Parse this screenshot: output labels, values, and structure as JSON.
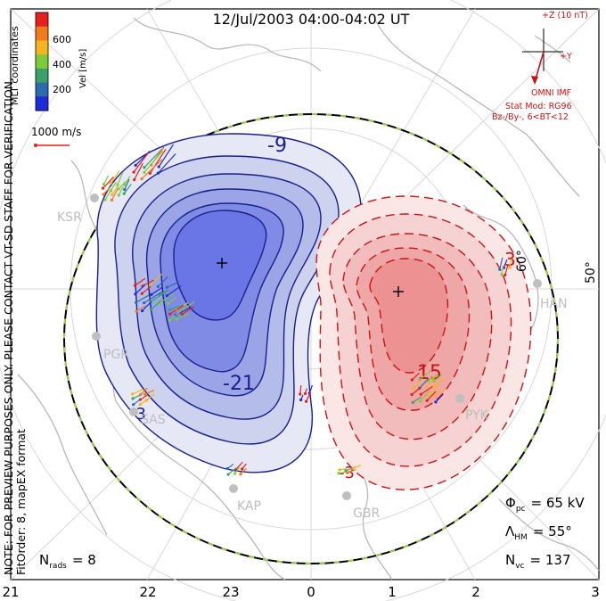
{
  "title": "12/Jul/2003 04:00-04:02 UT",
  "colorbar": {
    "ticks": [
      "600",
      "400",
      "200"
    ],
    "unit": "Vel [m/s]",
    "colors": [
      "#e8201c",
      "#f07a1c",
      "#f6b41e",
      "#7ecb3a",
      "#3aa06a",
      "#2d6bb0",
      "#1f2ad8"
    ]
  },
  "coord_label": "MLT coordinates",
  "vector_scale": "1000 m/s",
  "side_note_1": "NOTE: FOR PREVIEW PURPOSES ONLY. PLEASE CONTACT VT-SD STAFF FOR VERIFICATION.",
  "side_note_2": "FitOrder: 8, mapEX format",
  "imf": {
    "label": "+Z (10 nT)",
    "y_label": "+Y",
    "source": "OMNI IMF",
    "model": "Stat Mod: RG96",
    "condition": "Bz-/By-, 6<BT<12"
  },
  "stations": [
    "KSR",
    "PGR",
    "SAS",
    "KAP",
    "GBR",
    "PYK",
    "HAN"
  ],
  "contours": {
    "negative": [
      "-9",
      "-21",
      "-3"
    ],
    "positive": [
      "3",
      "15",
      "-3"
    ]
  },
  "lat_labels": [
    "60°",
    "50°"
  ],
  "mlt_ticks": [
    "21",
    "22",
    "23",
    "0",
    "1",
    "2",
    "3"
  ],
  "stats": {
    "phi_sym": "Φ",
    "phi_sub": "pc",
    "phi_val": "= 65 kV",
    "lam_sym": "Λ",
    "lam_sub": "HM",
    "lam_val": "= 55°",
    "nvc_sym": "N",
    "nvc_sub": "vc",
    "nvc_val": "= 137",
    "nrad_sym": "N",
    "nrad_sub": "rads",
    "nrad_val": "= 8"
  },
  "cell_colors": {
    "negative_fill": [
      "#e6e8f6",
      "#cdd2ef",
      "#b4bcea",
      "#9aa4e6",
      "#7f8be4",
      "#6a75e6"
    ],
    "negative_line": "#1a1f8a",
    "positive_fill": [
      "#fbe6e6",
      "#f6d2d2",
      "#f2bcbc",
      "#efa6a6",
      "#ec9292"
    ],
    "positive_line": "#c81414"
  }
}
